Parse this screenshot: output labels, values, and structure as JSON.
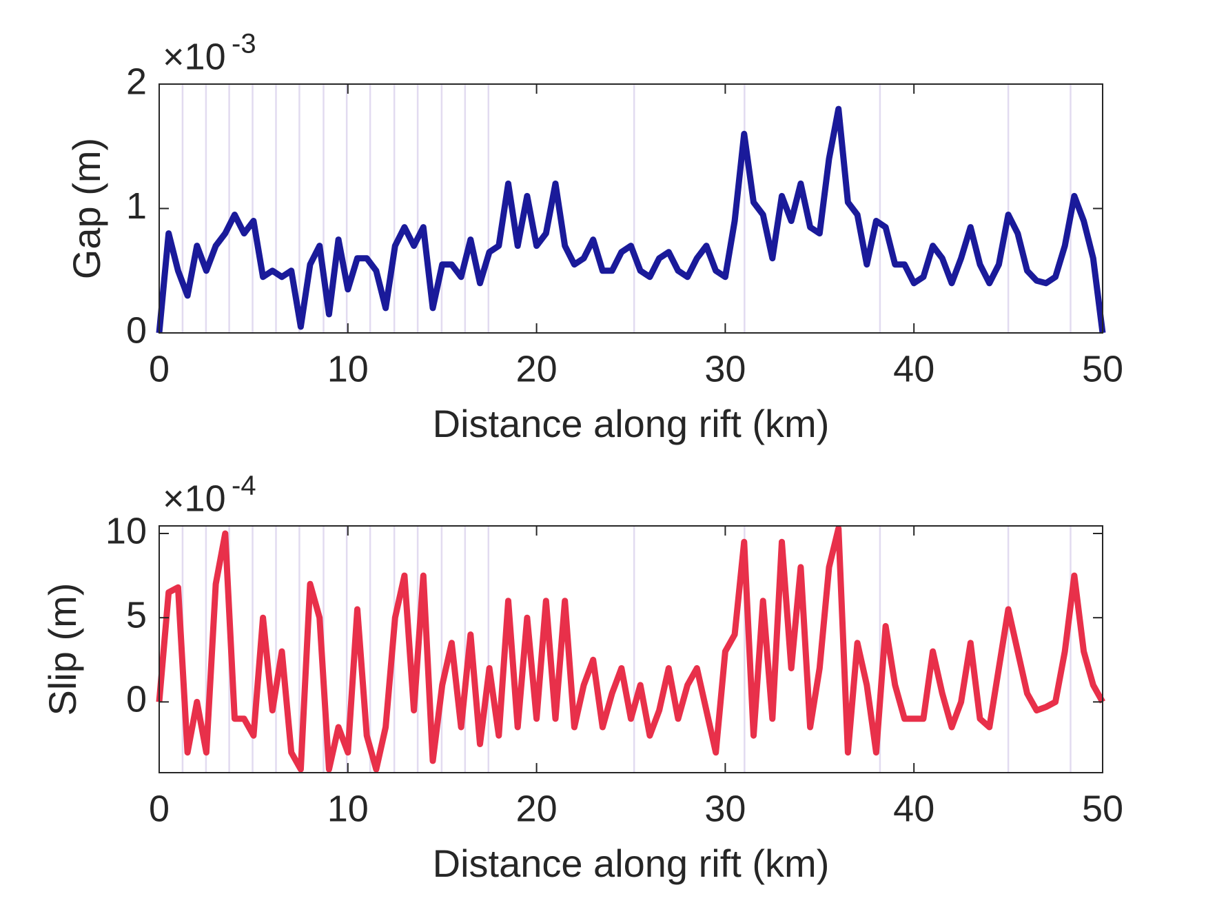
{
  "chart_data": [
    {
      "type": "line",
      "xlabel": "Distance along rift (km)",
      "ylabel": "Gap (m)",
      "multiplier": {
        "base": "×10",
        "exponent": "-3"
      },
      "xlim": [
        0,
        50
      ],
      "xticks": [
        0,
        10,
        20,
        30,
        40,
        50
      ],
      "ylim": [
        0,
        2
      ],
      "yticks": [
        0,
        1,
        2
      ],
      "grid": false,
      "vlines": {
        "color": "#e2dbf0",
        "x": [
          1.24,
          2.48,
          3.71,
          4.95,
          6.19,
          7.43,
          8.71,
          9.94,
          11.18,
          12.46,
          13.7,
          14.97,
          16.21,
          17.45,
          25.17,
          31.02,
          38.2,
          45.0,
          48.3
        ]
      },
      "x": [
        0,
        0.5,
        1,
        1.5,
        2,
        2.5,
        3,
        3.5,
        4,
        4.5,
        5,
        5.5,
        6,
        6.5,
        7,
        7.5,
        8,
        8.5,
        9,
        9.5,
        10,
        10.5,
        11,
        11.5,
        12,
        12.5,
        13,
        13.5,
        14,
        14.5,
        15,
        15.5,
        16,
        16.5,
        17,
        17.5,
        18,
        18.5,
        19,
        19.5,
        20,
        20.5,
        21,
        21.5,
        22,
        22.5,
        23,
        23.5,
        24,
        24.5,
        25,
        25.5,
        26,
        26.5,
        27,
        27.5,
        28,
        28.5,
        29,
        29.5,
        30,
        30.5,
        31,
        31.5,
        32,
        32.5,
        33,
        33.5,
        34,
        34.5,
        35,
        35.5,
        36,
        36.5,
        37,
        37.5,
        38,
        38.5,
        39,
        39.5,
        40,
        40.5,
        41,
        41.5,
        42,
        42.5,
        43,
        43.5,
        44,
        44.5,
        45,
        45.5,
        46,
        46.5,
        47,
        47.5,
        48,
        48.5,
        49,
        49.5,
        50
      ],
      "series": [
        {
          "color": "#1a1a9a",
          "values": [
            0,
            0.8,
            0.5,
            0.3,
            0.7,
            0.5,
            0.7,
            0.8,
            0.95,
            0.8,
            0.9,
            0.45,
            0.5,
            0.45,
            0.5,
            0.05,
            0.55,
            0.7,
            0.15,
            0.75,
            0.35,
            0.6,
            0.6,
            0.5,
            0.2,
            0.7,
            0.85,
            0.7,
            0.85,
            0.2,
            0.55,
            0.55,
            0.45,
            0.75,
            0.4,
            0.65,
            0.7,
            1.2,
            0.7,
            1.1,
            0.7,
            0.8,
            1.2,
            0.7,
            0.55,
            0.6,
            0.75,
            0.5,
            0.5,
            0.65,
            0.7,
            0.5,
            0.45,
            0.6,
            0.65,
            0.5,
            0.45,
            0.6,
            0.7,
            0.5,
            0.45,
            0.9,
            1.6,
            1.05,
            0.95,
            0.6,
            1.1,
            0.9,
            1.2,
            0.85,
            0.8,
            1.4,
            1.8,
            1.05,
            0.95,
            0.55,
            0.9,
            0.85,
            0.55,
            0.55,
            0.4,
            0.45,
            0.7,
            0.6,
            0.4,
            0.6,
            0.85,
            0.55,
            0.4,
            0.55,
            0.95,
            0.8,
            0.5,
            0.42,
            0.4,
            0.45,
            0.7,
            1.1,
            0.9,
            0.6,
            0
          ]
        }
      ]
    },
    {
      "type": "line",
      "xlabel": "Distance along rift (km)",
      "ylabel": "Slip (m)",
      "multiplier": {
        "base": "×10",
        "exponent": "-4"
      },
      "xlim": [
        0,
        50
      ],
      "xticks": [
        0,
        10,
        20,
        30,
        40,
        50
      ],
      "ylim": [
        -4.2,
        10.45
      ],
      "yticks": [
        0,
        5,
        10
      ],
      "grid": false,
      "vlines": {
        "color": "#e2dbf0",
        "x": [
          1.24,
          2.48,
          3.71,
          4.95,
          6.19,
          7.43,
          8.71,
          9.94,
          11.18,
          12.46,
          13.7,
          14.97,
          16.21,
          17.45,
          25.17,
          31.02,
          38.2,
          45.0,
          48.3
        ]
      },
      "x": [
        0,
        0.5,
        1,
        1.5,
        2,
        2.5,
        3,
        3.5,
        4,
        4.5,
        5,
        5.5,
        6,
        6.5,
        7,
        7.5,
        8,
        8.5,
        9,
        9.5,
        10,
        10.5,
        11,
        11.5,
        12,
        12.5,
        13,
        13.5,
        14,
        14.5,
        15,
        15.5,
        16,
        16.5,
        17,
        17.5,
        18,
        18.5,
        19,
        19.5,
        20,
        20.5,
        21,
        21.5,
        22,
        22.5,
        23,
        23.5,
        24,
        24.5,
        25,
        25.5,
        26,
        26.5,
        27,
        27.5,
        28,
        28.5,
        29,
        29.5,
        30,
        30.5,
        31,
        31.5,
        32,
        32.5,
        33,
        33.5,
        34,
        34.5,
        35,
        35.5,
        36,
        36.5,
        37,
        37.5,
        38,
        38.5,
        39,
        39.5,
        40,
        40.5,
        41,
        41.5,
        42,
        42.5,
        43,
        43.5,
        44,
        44.5,
        45,
        45.5,
        46,
        46.5,
        47,
        47.5,
        48,
        48.5,
        49,
        49.5,
        50
      ],
      "series": [
        {
          "color": "#e8304a",
          "values": [
            0,
            6.5,
            6.8,
            -3,
            0,
            -3,
            7,
            10,
            -1,
            -1,
            -2,
            5,
            -0.5,
            3,
            -3,
            -4,
            7,
            5,
            -4,
            -1.5,
            -3,
            5.5,
            -2,
            -4,
            -1.5,
            5,
            7.5,
            -0.5,
            7.5,
            -3.5,
            1,
            3.5,
            -1.5,
            4,
            -2.5,
            2,
            -2,
            6,
            -1.5,
            5,
            -1,
            6,
            -1,
            6,
            -1.5,
            1,
            2.5,
            -1.5,
            0.5,
            2,
            -1,
            1,
            -2,
            -0.5,
            2,
            -1,
            1,
            2,
            -0.5,
            -3,
            3,
            4,
            9.5,
            -2,
            6,
            -1,
            9.5,
            2,
            8,
            -1.5,
            2,
            8,
            10.3,
            -3,
            3.5,
            1,
            -3,
            4.5,
            1,
            -1,
            -1,
            -1,
            3,
            0.5,
            -1.5,
            0,
            3.5,
            -1,
            -1.5,
            2,
            5.5,
            3,
            0.5,
            -0.5,
            -0.3,
            0,
            3,
            7.5,
            3,
            1,
            0
          ]
        }
      ]
    }
  ]
}
